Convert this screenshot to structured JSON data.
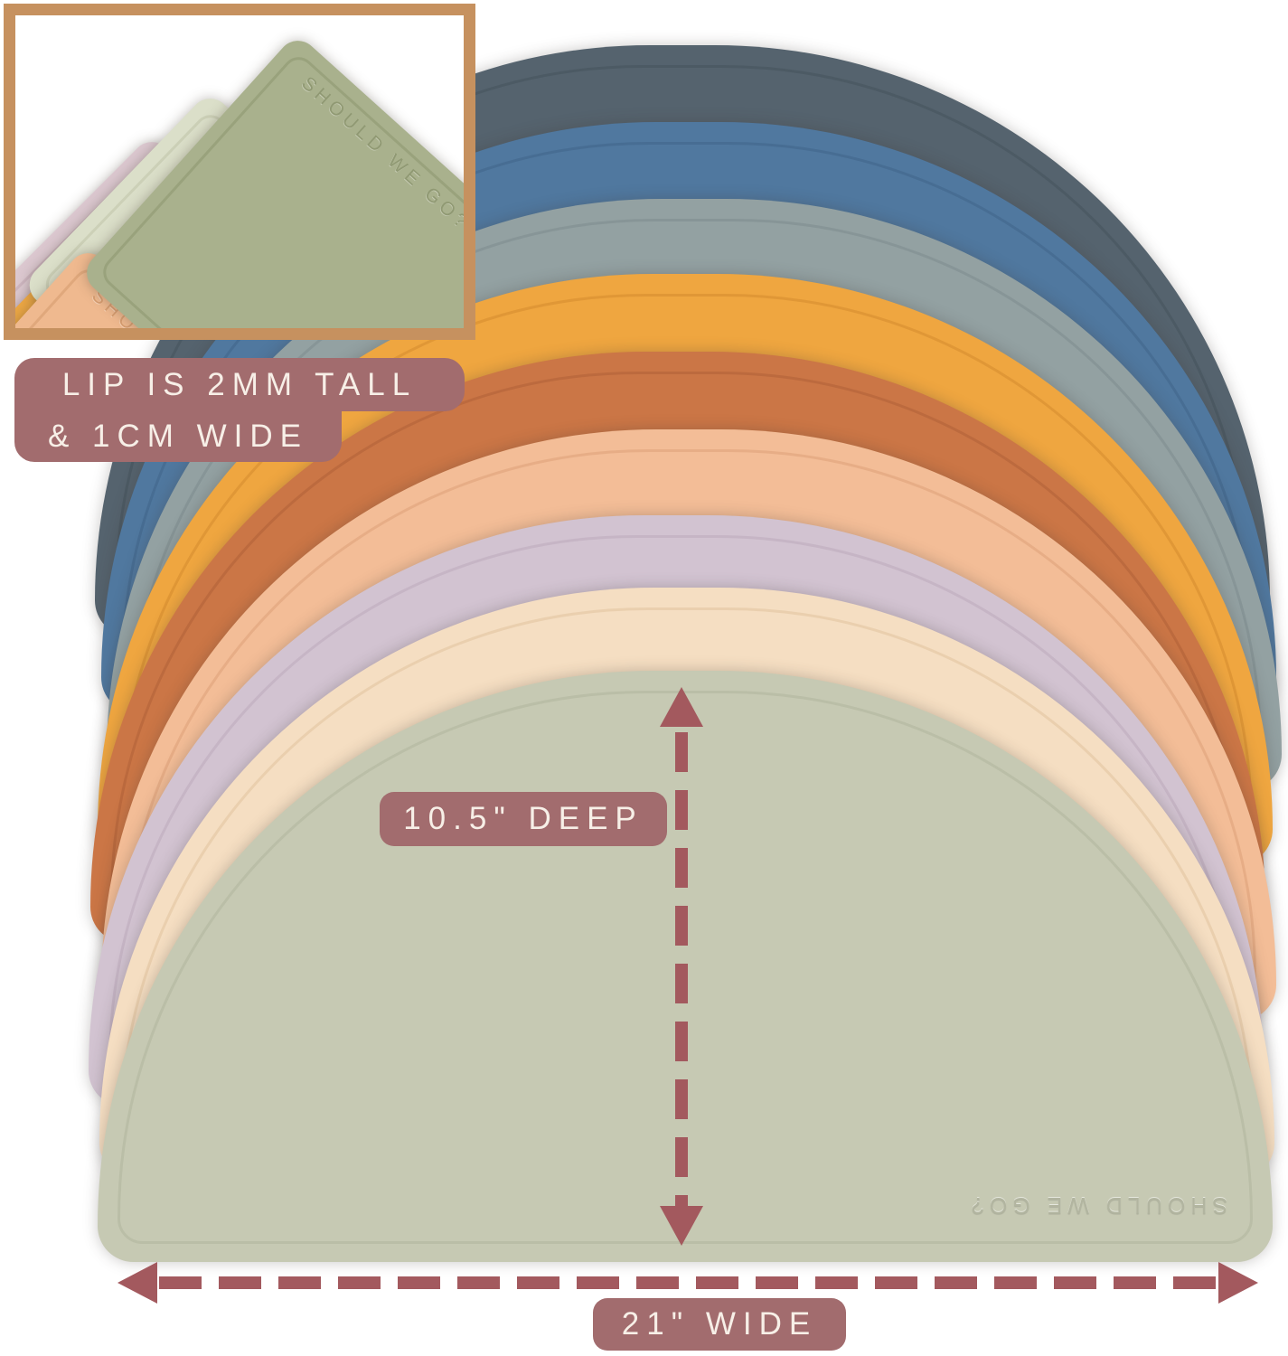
{
  "brand_text": "SHOULD WE GO?",
  "mats": [
    {
      "name": "slate",
      "color": "#55636e",
      "groove": "#46535d"
    },
    {
      "name": "blue",
      "color": "#50789f",
      "groove": "#3f6589"
    },
    {
      "name": "gray",
      "color": "#93a1a2",
      "groove": "#7e8d8e"
    },
    {
      "name": "mustard",
      "color": "#efa640",
      "groove": "#d38a2d"
    },
    {
      "name": "orange",
      "color": "#cb7646",
      "groove": "#b06138"
    },
    {
      "name": "peach",
      "color": "#f3bd97",
      "groove": "#dda178"
    },
    {
      "name": "pink",
      "color": "#d2c3d1",
      "groove": "#bcaabb"
    },
    {
      "name": "cream",
      "color": "#f5dec2",
      "groove": "#e0c29e"
    },
    {
      "name": "sage",
      "color": "#c6c9b3",
      "groove": "#b0b49c"
    }
  ],
  "inset": {
    "border_color": "#c6915f",
    "mats": [
      {
        "name": "pink",
        "color": "#dcc8d0",
        "groove": "#c4aab6"
      },
      {
        "name": "mustard",
        "color": "#eca744",
        "groove": "#d18e2e"
      },
      {
        "name": "pale-sage",
        "color": "#dbdfc9",
        "groove": "#c2c7ab"
      },
      {
        "name": "peach",
        "color": "#efb98f",
        "groove": "#d69c6f"
      },
      {
        "name": "sage",
        "color": "#a9b18d",
        "groove": "#8f9872"
      }
    ]
  },
  "annotations": {
    "label_bg": "#a26c6e",
    "label_text": "#f7efe7",
    "arrow_color": "#a3595e",
    "lip": {
      "line1": "LIP IS 2MM TALL",
      "line2": "& 1CM WIDE"
    },
    "depth": {
      "label": "10.5\" DEEP"
    },
    "width": {
      "label": "21\" WIDE"
    }
  }
}
